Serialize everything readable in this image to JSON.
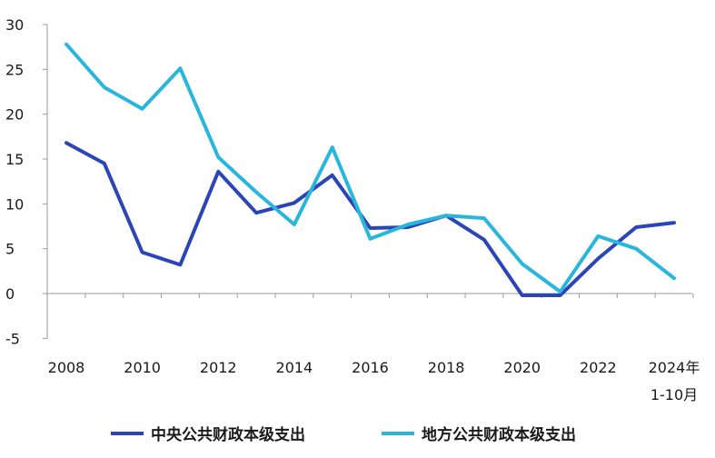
{
  "chart_data": {
    "type": "line",
    "title": "",
    "xlabel": "",
    "ylabel": "",
    "ylim": [
      -5,
      30
    ],
    "yticks": [
      -5,
      0,
      5,
      10,
      15,
      20,
      25,
      30
    ],
    "ytick_labels": [
      "-5",
      "0",
      "5",
      "10",
      "15",
      "20",
      "25",
      "30"
    ],
    "categories": [
      "2008",
      "2009",
      "2010",
      "2011",
      "2012",
      "2013",
      "2014",
      "2015",
      "2016",
      "2017",
      "2018",
      "2019",
      "2020",
      "2021",
      "2022",
      "2023",
      "2024"
    ],
    "xtick_labels": [
      {
        "index": 0,
        "lines": [
          "2008"
        ]
      },
      {
        "index": 2,
        "lines": [
          "2010"
        ]
      },
      {
        "index": 4,
        "lines": [
          "2012"
        ]
      },
      {
        "index": 6,
        "lines": [
          "2014"
        ]
      },
      {
        "index": 8,
        "lines": [
          "2016"
        ]
      },
      {
        "index": 10,
        "lines": [
          "2018"
        ]
      },
      {
        "index": 12,
        "lines": [
          "2020"
        ]
      },
      {
        "index": 14,
        "lines": [
          "2022"
        ]
      },
      {
        "index": 16,
        "lines": [
          "2024年",
          "1-10月"
        ]
      }
    ],
    "grid": false,
    "legend_position": "bottom",
    "series": [
      {
        "name": "中央公共财政本级支出",
        "color": "#2b45b8",
        "values": [
          16.8,
          14.5,
          4.6,
          3.2,
          13.6,
          9.0,
          10.1,
          13.2,
          7.3,
          7.4,
          8.7,
          6.0,
          -0.2,
          -0.2,
          3.9,
          7.4,
          7.9
        ]
      },
      {
        "name": "地方公共财政本级支出",
        "color": "#29b6dd",
        "values": [
          27.8,
          23.0,
          20.6,
          25.1,
          15.2,
          11.3,
          7.7,
          16.3,
          6.1,
          7.7,
          8.7,
          8.4,
          3.3,
          0.2,
          6.4,
          5.0,
          1.7
        ]
      }
    ]
  }
}
